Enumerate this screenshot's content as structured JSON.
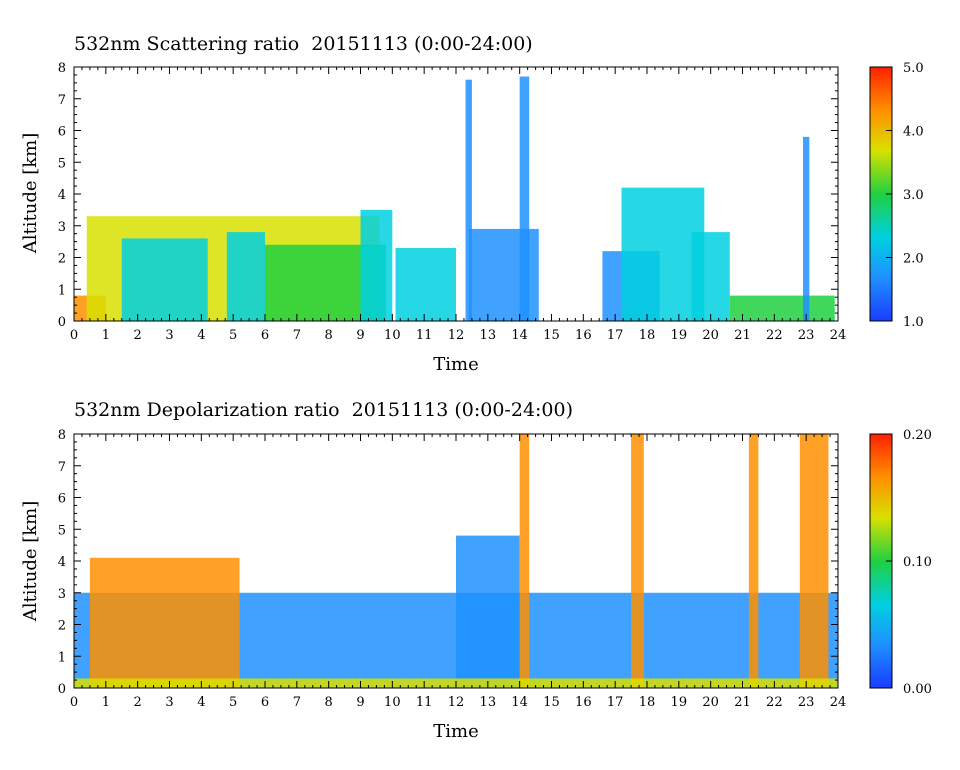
{
  "chart_data": [
    {
      "type": "heatmap",
      "title": "532nm Scattering ratio  20151113 (0:00-24:00)",
      "xlabel": "Time",
      "ylabel": "Altitude [km]",
      "xlim": [
        0,
        24
      ],
      "ylim": [
        0,
        8
      ],
      "x_ticks": [
        "0",
        "1",
        "2",
        "3",
        "4",
        "5",
        "6",
        "7",
        "8",
        "9",
        "10",
        "11",
        "12",
        "13",
        "14",
        "15",
        "16",
        "17",
        "18",
        "19",
        "20",
        "21",
        "22",
        "23",
        "24"
      ],
      "y_ticks": [
        "0",
        "1",
        "2",
        "3",
        "4",
        "5",
        "6",
        "7",
        "8"
      ],
      "colorbar": {
        "range": [
          1.0,
          5.0
        ],
        "tick_labels": [
          "1.0",
          "2.0",
          "3.0",
          "4.0",
          "5.0"
        ],
        "colormap": [
          "#1a3cff",
          "#1e90ff",
          "#00d0e0",
          "#20d040",
          "#d8e000",
          "#ff9000",
          "#ff2000"
        ]
      },
      "layers": [
        {
          "t": [
            0.0,
            1.0
          ],
          "top": 0.8,
          "value": 4.2
        },
        {
          "t": [
            0.4,
            9.6
          ],
          "top": 3.3,
          "value": 3.6
        },
        {
          "t": [
            1.5,
            4.2
          ],
          "top": 2.6,
          "value": 2.5
        },
        {
          "t": [
            4.8,
            6.0
          ],
          "top": 2.8,
          "value": 2.3
        },
        {
          "t": [
            6.0,
            9.8
          ],
          "top": 2.4,
          "value": 3.0
        },
        {
          "t": [
            9.0,
            10.0
          ],
          "top": 3.5,
          "value": 2.4
        },
        {
          "t": [
            10.1,
            12.0
          ],
          "top": 2.3,
          "value": 2.6
        },
        {
          "t": [
            12.4,
            14.6
          ],
          "top": 2.9,
          "value": 1.4
        },
        {
          "t": [
            14.0,
            14.3
          ],
          "top": 7.7,
          "value": 1.8
        },
        {
          "t": [
            12.3,
            12.5
          ],
          "top": 7.6,
          "value": 1.9
        },
        {
          "t": [
            16.6,
            18.4
          ],
          "top": 2.2,
          "value": 1.5
        },
        {
          "t": [
            17.2,
            19.8
          ],
          "top": 4.2,
          "value": 2.2
        },
        {
          "t": [
            19.4,
            20.6
          ],
          "top": 2.8,
          "value": 2.0
        },
        {
          "t": [
            20.6,
            23.9
          ],
          "top": 0.8,
          "value": 2.8
        },
        {
          "t": [
            22.9,
            23.1
          ],
          "top": 5.8,
          "value": 1.8
        }
      ]
    },
    {
      "type": "heatmap",
      "title": "532nm Depolarization ratio  20151113 (0:00-24:00)",
      "xlabel": "Time",
      "ylabel": "Altitude [km]",
      "xlim": [
        0,
        24
      ],
      "ylim": [
        0,
        8
      ],
      "x_ticks": [
        "0",
        "1",
        "2",
        "3",
        "4",
        "5",
        "6",
        "7",
        "8",
        "9",
        "10",
        "11",
        "12",
        "13",
        "14",
        "15",
        "16",
        "17",
        "18",
        "19",
        "20",
        "21",
        "22",
        "23",
        "24"
      ],
      "y_ticks": [
        "0",
        "1",
        "2",
        "3",
        "4",
        "5",
        "6",
        "7",
        "8"
      ],
      "colorbar": {
        "range": [
          0.0,
          0.2
        ],
        "tick_labels": [
          "0.00",
          "0.10",
          "0.20"
        ],
        "colormap": [
          "#1a3cff",
          "#1e90ff",
          "#00d0e0",
          "#20d040",
          "#d8e000",
          "#ff9000",
          "#ff2000"
        ]
      },
      "layers": [
        {
          "t": [
            0.0,
            24.0
          ],
          "top": 3.0,
          "value": 0.04
        },
        {
          "t": [
            0.5,
            5.2
          ],
          "top": 4.1,
          "value": 0.17
        },
        {
          "t": [
            12.0,
            14.0
          ],
          "top": 4.8,
          "value": 0.03
        },
        {
          "t": [
            14.0,
            14.3
          ],
          "top": 8.0,
          "value": 0.16
        },
        {
          "t": [
            17.5,
            17.9
          ],
          "top": 8.0,
          "value": 0.17
        },
        {
          "t": [
            21.2,
            21.5
          ],
          "top": 8.0,
          "value": 0.16
        },
        {
          "t": [
            22.8,
            23.7
          ],
          "top": 8.0,
          "value": 0.17
        },
        {
          "t": [
            0.0,
            24.0
          ],
          "top": 0.3,
          "value": 0.12
        }
      ]
    }
  ]
}
